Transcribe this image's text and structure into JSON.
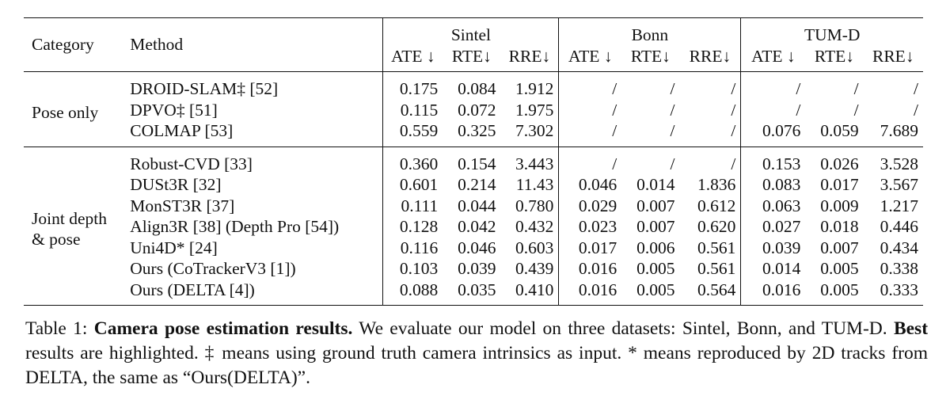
{
  "table": {
    "header": {
      "category": "Category",
      "method": "Method",
      "datasets": [
        "Sintel",
        "Bonn",
        "TUM-D"
      ],
      "metrics": [
        "ATE ↓",
        "RTE↓",
        "RRE↓"
      ]
    },
    "groups": [
      {
        "category_lines": [
          "Pose only"
        ],
        "rows": [
          {
            "method": "DROID-SLAM‡ [52]",
            "values": [
              "0.175",
              "0.084",
              "1.912",
              "/",
              "/",
              "/",
              "/",
              "/",
              "/"
            ],
            "bold": []
          },
          {
            "method": "DPVO‡ [51]",
            "values": [
              "0.115",
              "0.072",
              "1.975",
              "/",
              "/",
              "/",
              "/",
              "/",
              "/"
            ],
            "bold": []
          },
          {
            "method": "COLMAP [53]",
            "values": [
              "0.559",
              "0.325",
              "7.302",
              "/",
              "/",
              "/",
              "0.076",
              "0.059",
              "7.689"
            ],
            "bold": []
          }
        ]
      },
      {
        "category_lines": [
          "Joint depth",
          "& pose"
        ],
        "rows": [
          {
            "method": "Robust-CVD [33]",
            "values": [
              "0.360",
              "0.154",
              "3.443",
              "/",
              "/",
              "/",
              "0.153",
              "0.026",
              "3.528"
            ],
            "bold": []
          },
          {
            "method": "DUSt3R [32]",
            "values": [
              "0.601",
              "0.214",
              "11.43",
              "0.046",
              "0.014",
              "1.836",
              "0.083",
              "0.017",
              "3.567"
            ],
            "bold": []
          },
          {
            "method": "MonST3R [37]",
            "values": [
              "0.111",
              "0.044",
              "0.780",
              "0.029",
              "0.007",
              "0.612",
              "0.063",
              "0.009",
              "1.217"
            ],
            "bold": []
          },
          {
            "method": "Align3R [38] (Depth Pro [54])",
            "values": [
              "0.128",
              "0.042",
              "0.432",
              "0.023",
              "0.007",
              "0.620",
              "0.027",
              "0.018",
              "0.446"
            ],
            "bold": []
          },
          {
            "method": "Uni4D* [24]",
            "values": [
              "0.116",
              "0.046",
              "0.603",
              "0.017",
              "0.006",
              "0.561",
              "0.039",
              "0.007",
              "0.434"
            ],
            "bold": []
          },
          {
            "method": "Ours (CoTrackerV3 [1])",
            "values": [
              "0.103",
              "0.039",
              "0.439",
              "0.016",
              "0.005",
              "0.561",
              "0.014",
              "0.005",
              "0.338"
            ],
            "bold": [
              4,
              5,
              6,
              7
            ]
          },
          {
            "method": "Ours (DELTA [4])",
            "values": [
              "0.088",
              "0.035",
              "0.410",
              "0.016",
              "0.005",
              "0.564",
              "0.016",
              "0.005",
              "0.333"
            ],
            "bold": [
              0,
              1,
              2,
              3,
              8
            ]
          }
        ]
      }
    ]
  },
  "caption": {
    "label": "Table 1:",
    "title": "Camera pose estimation results.",
    "text1": " We evaluate our model on three datasets: Sintel, Bonn, and TUM-D. ",
    "best": "Best",
    "text2": " results are highlighted. ‡ means using ground truth camera intrinsics as input. * means reproduced by 2D tracks from DELTA, the same as “Ours(DELTA)”."
  }
}
